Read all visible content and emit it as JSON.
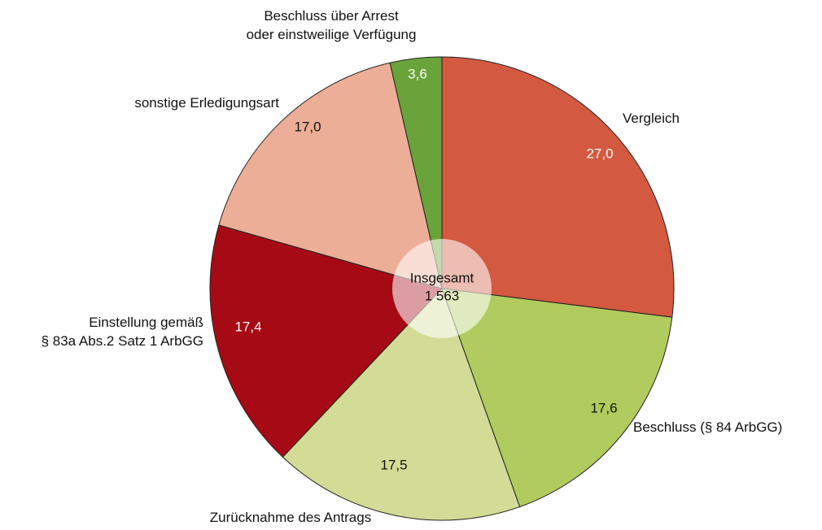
{
  "chart_data": {
    "type": "pie",
    "categories": [
      "Vergleich",
      "Beschluss (§ 84 ArbGG)",
      "Zurücknahme des Antrags",
      "Einstellung gemäß\n§ 83a Abs.2 Satz 1 ArbGG",
      "sonstige Erledigungsart",
      "Beschluss über Arrest\noder einstweilige Verfügung"
    ],
    "values": [
      27.0,
      17.6,
      17.5,
      17.4,
      17.0,
      3.6
    ],
    "value_labels": [
      "27,0",
      "17,6",
      "17,5",
      "17,4",
      "17,0",
      "3,6"
    ],
    "colors": [
      "#d35940",
      "#b0cc5e",
      "#d3dc96",
      "#a60a14",
      "#edae97",
      "#6aa33a"
    ],
    "center_title": "Insgesamt",
    "center_value": "1 563"
  }
}
